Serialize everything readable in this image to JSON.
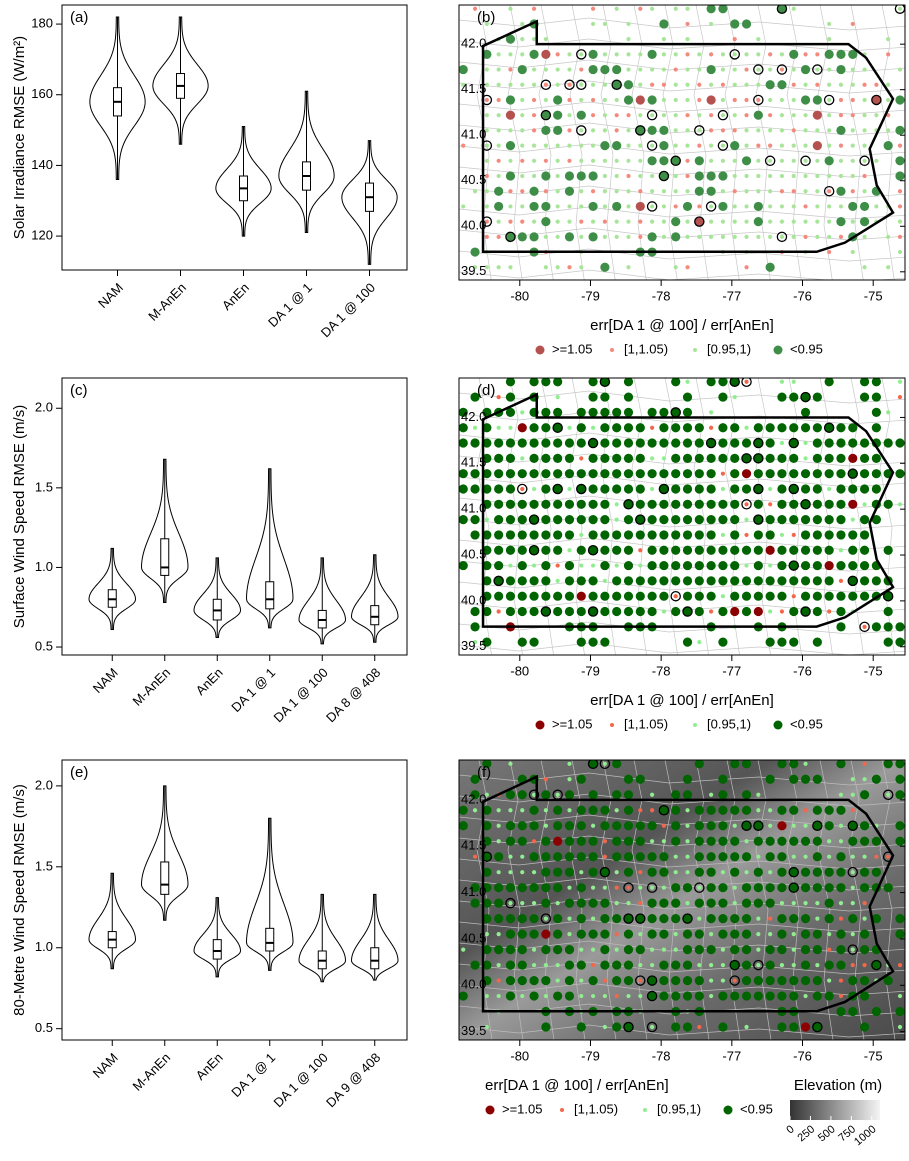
{
  "chart_data": [
    {
      "type": "violin",
      "panel_label": "(a)",
      "ylabel": "Solar Irradiance RMSE (W/m²)",
      "categories": [
        "NAM",
        "M-AnEn",
        "AnEn",
        "DA 1 @ 1",
        "DA 1 @ 100"
      ],
      "min": [
        136,
        146,
        120,
        121,
        112
      ],
      "q1": [
        154,
        159,
        130,
        133,
        127
      ],
      "median": [
        158,
        162.5,
        133.5,
        137,
        131
      ],
      "q3": [
        162,
        166,
        137,
        141,
        135
      ],
      "max": [
        182,
        182,
        151,
        161,
        147
      ],
      "ylim": [
        110.4,
        185.4
      ],
      "yticks": [
        120,
        140,
        160,
        180
      ]
    },
    {
      "type": "map",
      "panel_label": "(b)",
      "xlim": [
        -80.86,
        -74.55
      ],
      "ylim": [
        39.41,
        42.43
      ],
      "xticks": [
        -80,
        -79,
        -78,
        -77,
        -76,
        -75
      ],
      "yticks": [
        39.5,
        {
          "value": 40,
          "label": "40.0"
        },
        40.5,
        {
          "value": 41,
          "label": "41.0"
        },
        41.5,
        {
          "value": 42,
          "label": "42.0"
        }
      ],
      "legend_title": "err[DA 1 @ 100] / err[AnEn]",
      "series": [
        {
          "name": ">=1.05",
          "color": "#b5524f"
        },
        {
          "name": "[1,1.05)",
          "color": "#f48a7e"
        },
        {
          "name": "[0.95,1)",
          "color": "#a8e59a"
        },
        {
          "name": "<0.95",
          "color": "#3e8e48"
        }
      ]
    },
    {
      "type": "violin",
      "panel_label": "(c)",
      "ylabel": "Surface Wind Speed RMSE (m/s)",
      "categories": [
        "NAM",
        "M-AnEn",
        "AnEn",
        "DA 1 @ 1",
        "DA 1 @ 100",
        "DA 8 @ 408"
      ],
      "min": [
        0.61,
        0.78,
        0.56,
        0.62,
        0.52,
        0.53
      ],
      "q1": [
        0.75,
        0.95,
        0.67,
        0.74,
        0.62,
        0.64
      ],
      "median": [
        0.8,
        1.0,
        0.73,
        0.8,
        0.67,
        0.69
      ],
      "q3": [
        0.86,
        1.18,
        0.8,
        0.91,
        0.73,
        0.76
      ],
      "max": [
        1.12,
        1.68,
        1.06,
        1.62,
        1.06,
        1.08
      ],
      "ylim": [
        0.45,
        2.19
      ],
      "yticks": [
        0.5,
        {
          "value": 1,
          "label": "1.0"
        },
        1.5,
        {
          "value": 2,
          "label": "2.0"
        }
      ]
    },
    {
      "type": "map",
      "panel_label": "(d)",
      "xlim": [
        -80.86,
        -74.55
      ],
      "ylim": [
        39.41,
        42.43
      ],
      "xticks": [
        -80,
        -79,
        -78,
        -77,
        -76,
        -75
      ],
      "yticks": [
        39.5,
        {
          "value": 40,
          "label": "40.0"
        },
        40.5,
        {
          "value": 41,
          "label": "41.0"
        },
        41.5,
        {
          "value": 42,
          "label": "42.0"
        }
      ],
      "legend_title": "err[DA 1 @ 100] / err[AnEn]",
      "series": [
        {
          "name": ">=1.05",
          "color": "#8b0000"
        },
        {
          "name": "[1,1.05)",
          "color": "#f4674a"
        },
        {
          "name": "[0.95,1)",
          "color": "#90ee90"
        },
        {
          "name": "<0.95",
          "color": "#006400"
        }
      ]
    },
    {
      "type": "violin",
      "panel_label": "(e)",
      "ylabel": "80-Metre Wind Speed RMSE (m/s)",
      "categories": [
        "NAM",
        "M-AnEn",
        "AnEn",
        "DA 1 @ 1",
        "DA 1 @ 100",
        "DA 9 @ 408"
      ],
      "min": [
        0.87,
        1.17,
        0.82,
        0.86,
        0.79,
        0.8
      ],
      "q1": [
        1.0,
        1.33,
        0.93,
        0.98,
        0.87,
        0.87
      ],
      "median": [
        1.05,
        1.39,
        0.98,
        1.03,
        0.92,
        0.92
      ],
      "q3": [
        1.1,
        1.53,
        1.05,
        1.12,
        0.98,
        1.0
      ],
      "max": [
        1.46,
        2.0,
        1.31,
        1.8,
        1.33,
        1.33
      ],
      "ylim": [
        0.43,
        2.16
      ],
      "yticks": [
        0.5,
        {
          "value": 1,
          "label": "1.0"
        },
        1.5,
        {
          "value": 2,
          "label": "2.0"
        }
      ]
    },
    {
      "type": "map",
      "panel_label": "(f)",
      "xlim": [
        -80.86,
        -74.55
      ],
      "ylim": [
        39.41,
        42.43
      ],
      "xticks": [
        -80,
        -79,
        -78,
        -77,
        -76,
        -75
      ],
      "yticks": [
        39.5,
        {
          "value": 40,
          "label": "40.0"
        },
        40.5,
        {
          "value": 41,
          "label": "41.0"
        },
        41.5,
        {
          "value": 42,
          "label": "42.0"
        }
      ],
      "legend_title": "err[DA 1 @ 100] / err[AnEn]",
      "series": [
        {
          "name": ">=1.05",
          "color": "#8b0000"
        },
        {
          "name": "[1,1.05)",
          "color": "#f4674a"
        },
        {
          "name": "[0.95,1)",
          "color": "#90ee90"
        },
        {
          "name": "<0.95",
          "color": "#006400"
        }
      ],
      "colorbar": {
        "title": "Elevation (m)",
        "lim": [
          0,
          1100
        ],
        "ticks": [
          0,
          250,
          500,
          750,
          1000
        ]
      }
    }
  ]
}
